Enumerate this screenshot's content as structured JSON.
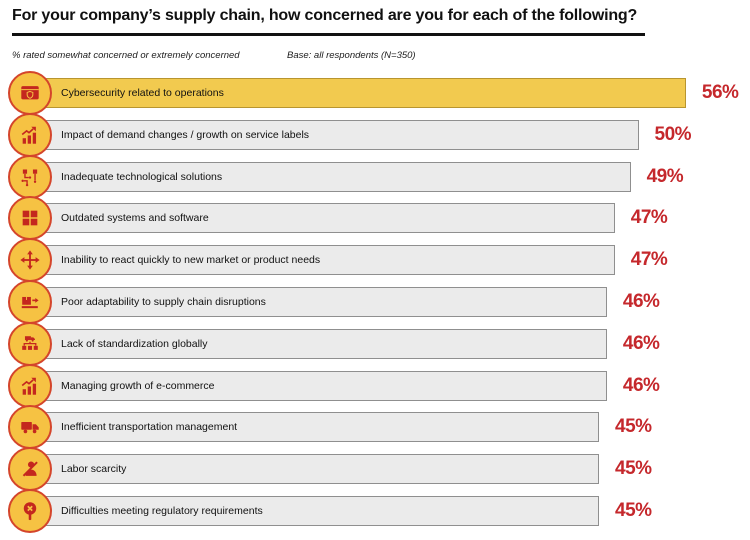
{
  "header": {
    "title": "For your company’s supply chain, how concerned are you for each of the following?",
    "subtitle_left": "% rated somewhat concerned or extremely concerned",
    "subtitle_right": "Base: all respondents (N=350)"
  },
  "colors": {
    "highlight_bar_fill": "#F2CA4F",
    "highlight_bar_border": "#B8952F",
    "bar_fill": "#EBEBEB",
    "bar_border": "#8F8F8F",
    "accent_red": "#C5282C",
    "icon_circle_fill": "#F6C243",
    "icon_circle_border": "#D4452B",
    "icon_glyph": "#C4271E",
    "title_color": "#111111"
  },
  "chart_data": {
    "type": "bar",
    "orientation": "horizontal",
    "title": "For your company’s supply chain, how concerned are you for each of the following?",
    "note": "% rated somewhat concerned or extremely concerned",
    "base": "Base: all respondents (N=350)",
    "categories": [
      "Cybersecurity related to operations",
      "Impact of demand changes / growth on service labels",
      "Inadequate technological solutions",
      "Outdated systems and software",
      "Inability to react quickly to new market or product needs",
      "Poor adaptability to supply chain disruptions",
      "Lack of standardization globally",
      "Managing growth of e-commerce",
      "Inefficient transportation management",
      "Labor scarcity",
      "Difficulties meeting regulatory requirements"
    ],
    "values": [
      56,
      50,
      49,
      47,
      47,
      46,
      46,
      46,
      45,
      45,
      45
    ],
    "value_suffix": "%",
    "highlighted_index": 0,
    "legend": "none",
    "grid": false
  },
  "rows": [
    {
      "label": "Cybersecurity related to operations",
      "value": 56,
      "value_label": "56%",
      "icon": "window-shield-icon",
      "highlighted": true
    },
    {
      "label": "Impact of demand changes / growth on service labels",
      "value": 50,
      "value_label": "50%",
      "icon": "growth-chart-icon",
      "highlighted": false
    },
    {
      "label": "Inadequate technological solutions",
      "value": 49,
      "value_label": "49%",
      "icon": "circuit-board-icon",
      "highlighted": false
    },
    {
      "label": "Outdated systems and software",
      "value": 47,
      "value_label": "47%",
      "icon": "grid-squares-icon",
      "highlighted": false
    },
    {
      "label": "Inability to react quickly to new market or product needs",
      "value": 47,
      "value_label": "47%",
      "icon": "move-arrows-icon",
      "highlighted": false
    },
    {
      "label": "Poor adaptability to supply chain disruptions",
      "value": 46,
      "value_label": "46%",
      "icon": "package-out-icon",
      "highlighted": false
    },
    {
      "label": "Lack of standardization globally",
      "value": 46,
      "value_label": "46%",
      "icon": "distribution-network-icon",
      "highlighted": false
    },
    {
      "label": "Managing growth of e-commerce",
      "value": 46,
      "value_label": "46%",
      "icon": "growth-chart-icon",
      "highlighted": false
    },
    {
      "label": "Inefficient transportation management",
      "value": 45,
      "value_label": "45%",
      "icon": "truck-icon",
      "highlighted": false
    },
    {
      "label": "Labor scarcity",
      "value": 45,
      "value_label": "45%",
      "icon": "no-person-icon",
      "highlighted": false
    },
    {
      "label": "Difficulties meeting regulatory requirements",
      "value": 45,
      "value_label": "45%",
      "icon": "pin-x-icon",
      "highlighted": false
    }
  ]
}
